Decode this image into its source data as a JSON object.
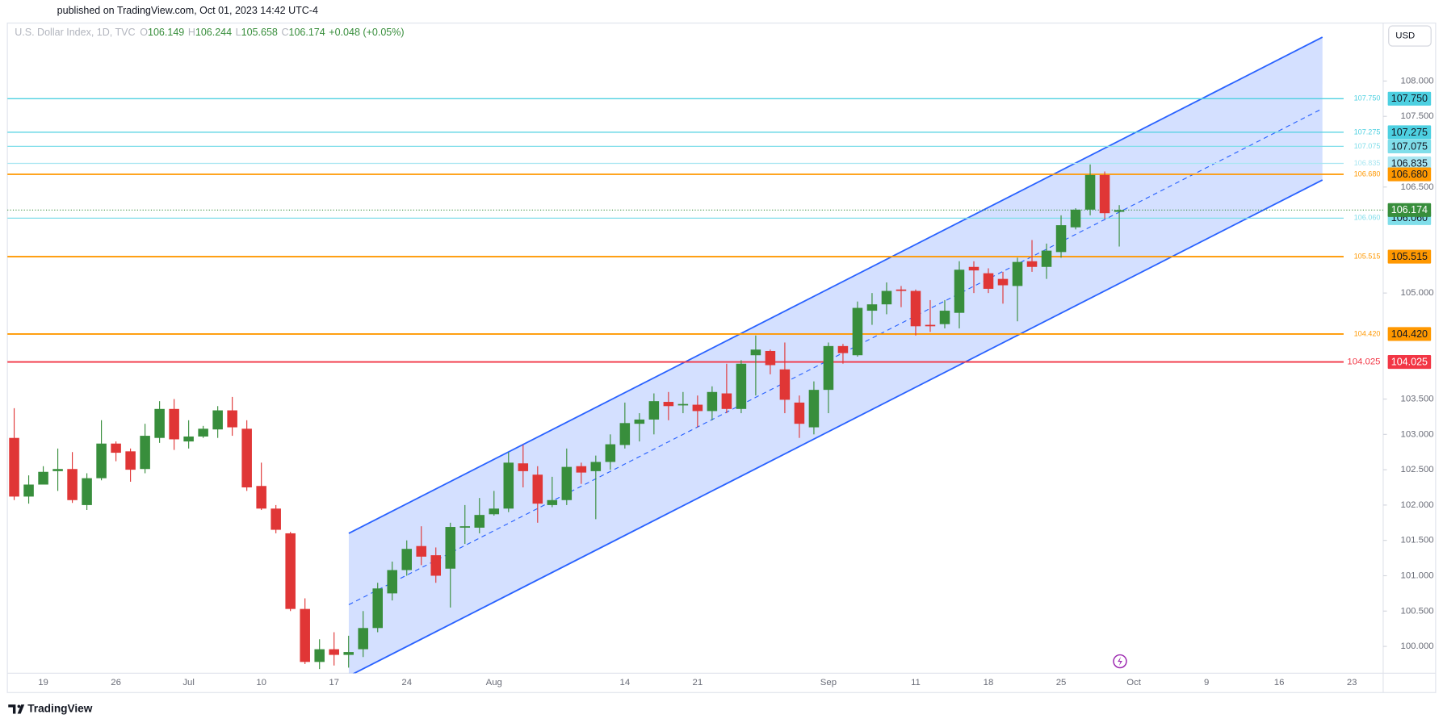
{
  "header": {
    "published": "published on TradingView.com, Oct 01, 2023 14:42 UTC-4",
    "currency": "USD",
    "brand": "TradingView"
  },
  "chart_data": {
    "type": "candlestick",
    "title": "U.S. Dollar Index, 1D, TVC",
    "ohlc_labels": [
      "O",
      "H",
      "L",
      "C"
    ],
    "change": "+0.048 (+0.05%)",
    "up_color": "#388e3c",
    "down_color": "#e03636",
    "categories": [
      null,
      null,
      "19",
      null,
      null,
      null,
      null,
      "26",
      null,
      null,
      null,
      null,
      "Jul",
      null,
      null,
      null,
      null,
      "10",
      null,
      null,
      null,
      null,
      "17",
      null,
      null,
      null,
      null,
      "24",
      null,
      null,
      null,
      null,
      null,
      "Aug",
      null,
      null,
      null,
      null,
      null,
      null,
      null,
      null,
      "14",
      null,
      null,
      null,
      null,
      "21",
      null,
      null,
      null,
      null,
      null,
      null,
      null,
      null,
      "Sep",
      null,
      null,
      null,
      null,
      null,
      "11",
      null,
      null,
      null,
      null,
      "18",
      null,
      null,
      null,
      null,
      "25",
      null,
      null,
      null,
      null,
      "Oct",
      null,
      null,
      null,
      null,
      "9",
      null,
      null,
      null,
      null,
      "16",
      null,
      null,
      null,
      null,
      "23"
    ],
    "open": [
      102.95,
      102.12,
      102.29,
      102.48,
      102.51,
      102.0,
      102.38,
      102.87,
      102.76,
      102.51,
      102.95,
      103.36,
      102.9,
      102.97,
      103.07,
      103.34,
      103.08,
      102.27,
      101.95,
      101.6,
      100.53,
      99.78,
      99.96,
      99.88,
      99.96,
      100.26,
      100.75,
      101.08,
      101.42,
      101.29,
      101.1,
      101.68,
      101.68,
      101.87,
      101.95,
      102.59,
      102.43,
      102.0,
      102.07,
      102.55,
      102.48,
      102.61,
      102.85,
      103.15,
      103.21,
      103.46,
      103.41,
      103.42,
      103.33,
      103.58,
      103.36,
      104.12,
      104.18,
      103.92,
      103.45,
      103.1,
      103.63,
      104.25,
      104.12,
      104.75,
      104.84,
      105.05,
      105.03,
      104.55,
      104.56,
      104.72,
      105.37,
      105.28,
      105.2,
      105.1,
      105.45,
      105.37,
      105.58,
      105.93,
      106.18,
      106.67,
      106.149,
      null,
      null,
      null,
      null,
      null,
      null,
      null,
      null,
      null,
      null,
      null,
      null,
      null,
      null,
      null,
      null
    ],
    "high": [
      103.37,
      102.42,
      102.55,
      102.8,
      102.75,
      102.45,
      103.2,
      102.9,
      102.8,
      103.15,
      103.47,
      103.5,
      103.2,
      103.12,
      103.4,
      103.53,
      103.2,
      102.6,
      102.0,
      101.62,
      100.68,
      100.1,
      100.2,
      100.15,
      100.5,
      100.9,
      101.2,
      101.5,
      101.7,
      101.4,
      101.75,
      102.0,
      102.1,
      102.2,
      102.75,
      102.85,
      102.55,
      102.4,
      102.8,
      102.6,
      102.7,
      103.0,
      103.45,
      103.3,
      103.58,
      103.6,
      103.6,
      103.55,
      103.68,
      104.0,
      104.05,
      104.4,
      104.2,
      104.3,
      103.55,
      103.75,
      104.3,
      104.28,
      104.88,
      105.0,
      105.15,
      105.1,
      105.05,
      104.9,
      104.9,
      105.45,
      105.45,
      105.35,
      105.3,
      105.5,
      105.75,
      105.7,
      106.1,
      106.2,
      106.82,
      106.72,
      106.244,
      null,
      null,
      null,
      null,
      null,
      null,
      null,
      null,
      null,
      null,
      null,
      null,
      null,
      null,
      null,
      null
    ],
    "low": [
      102.07,
      102.02,
      102.3,
      102.2,
      102.03,
      101.93,
      102.35,
      102.62,
      102.33,
      102.45,
      102.88,
      102.78,
      102.8,
      102.95,
      102.95,
      102.98,
      102.2,
      101.93,
      101.6,
      100.5,
      99.75,
      99.68,
      99.73,
      99.7,
      99.85,
      100.2,
      100.65,
      101.0,
      101.15,
      100.9,
      100.55,
      101.45,
      101.6,
      101.85,
      101.9,
      102.25,
      101.75,
      101.97,
      102.0,
      102.3,
      101.8,
      102.5,
      102.8,
      102.9,
      103.0,
      103.2,
      103.3,
      103.1,
      103.2,
      103.3,
      103.3,
      103.55,
      103.85,
      103.3,
      102.95,
      103.0,
      103.3,
      104.0,
      104.1,
      104.55,
      104.7,
      104.8,
      104.4,
      104.45,
      104.5,
      104.5,
      105.0,
      105.0,
      104.85,
      104.6,
      105.3,
      105.2,
      105.5,
      105.9,
      106.1,
      106.05,
      105.658,
      null,
      null,
      null,
      null,
      null,
      null,
      null,
      null,
      null,
      null,
      null,
      null,
      null,
      null,
      null,
      null
    ],
    "close": [
      102.12,
      102.29,
      102.47,
      102.51,
      102.07,
      102.38,
      102.87,
      102.74,
      102.5,
      102.98,
      103.36,
      102.93,
      102.97,
      103.08,
      103.34,
      103.1,
      102.25,
      101.95,
      101.65,
      100.53,
      99.78,
      99.96,
      99.88,
      99.92,
      100.26,
      100.82,
      101.08,
      101.38,
      101.27,
      101.0,
      101.69,
      101.7,
      101.86,
      101.95,
      102.6,
      102.48,
      102.02,
      102.07,
      102.54,
      102.46,
      102.61,
      102.86,
      103.16,
      103.21,
      103.47,
      103.4,
      103.43,
      103.33,
      103.6,
      103.36,
      104.0,
      104.2,
      103.98,
      103.49,
      103.15,
      103.63,
      104.25,
      104.15,
      104.79,
      104.84,
      105.03,
      105.03,
      104.53,
      104.53,
      104.75,
      105.33,
      105.32,
      105.06,
      105.11,
      105.44,
      105.37,
      105.6,
      105.96,
      106.18,
      106.67,
      106.13,
      106.174,
      null,
      null,
      null,
      null,
      null,
      null,
      null,
      null,
      null,
      null,
      null,
      null,
      null,
      null,
      null,
      null
    ],
    "ylim": [
      99.62,
      108.82
    ],
    "yticks": [
      {
        "value": 100,
        "label": "100.000"
      },
      {
        "value": 100.5,
        "label": "100.500"
      },
      {
        "value": 101,
        "label": "101.000"
      },
      {
        "value": 101.5,
        "label": "101.500"
      },
      {
        "value": 102,
        "label": "102.000"
      },
      {
        "value": 102.5,
        "label": "102.500"
      },
      {
        "value": 103,
        "label": "103.000"
      },
      {
        "value": 103.5,
        "label": "103.500"
      },
      {
        "value": 105,
        "label": "105.000"
      },
      {
        "value": 106.5,
        "label": "106.500"
      },
      {
        "value": 107.5,
        "label": "107.500"
      },
      {
        "value": 108,
        "label": "108.000"
      }
    ],
    "levels": [
      {
        "value": 107.75,
        "label": "107.750",
        "color": "#4dd0e1",
        "badge_text": "#131722"
      },
      {
        "value": 107.275,
        "label": "107.275",
        "color": "#4dd0e1",
        "badge_text": "#131722"
      },
      {
        "value": 107.075,
        "label": "107.075",
        "color": "#80deea",
        "badge_text": "#131722"
      },
      {
        "value": 106.835,
        "label": "106.835",
        "color": "#a9e6f1",
        "badge_text": "#131722"
      },
      {
        "value": 106.68,
        "label": "106.680",
        "color": "#ff9800",
        "badge_text": "#131722"
      },
      {
        "value": 106.06,
        "label": "106.060",
        "color": "#80deea",
        "badge_text": "#131722"
      },
      {
        "value": 105.515,
        "label": "105.515",
        "color": "#ff9800",
        "badge_text": "#131722"
      },
      {
        "value": 104.42,
        "label": "104.420",
        "color": "#ff9800",
        "badge_text": "#131722"
      },
      {
        "value": 104.025,
        "label": "104.025",
        "color": "#f23645",
        "badge_text": "#ffffff"
      }
    ],
    "last_price": {
      "value": 106.174,
      "label": "106.174",
      "color": "#388e3c"
    },
    "channel": {
      "upper": [
        101.6,
        108.62
      ],
      "middle": [
        100.59,
        107.61
      ],
      "lower": [
        99.58,
        106.6
      ],
      "color": "#2962ff"
    }
  }
}
